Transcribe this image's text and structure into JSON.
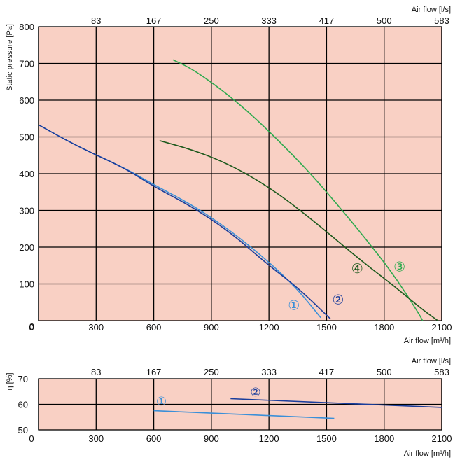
{
  "chart_data": [
    {
      "type": "line",
      "xlabel_bottom": "Air flow [m³/h]",
      "xlabel_top": "Air flow [l/s]",
      "ylabel": "Static pressure [Pa]",
      "xlim": [
        0,
        2100
      ],
      "ylim": [
        0,
        800
      ],
      "x_ticks": [
        "0",
        "300",
        "600",
        "900",
        "1200",
        "1500",
        "1800",
        "2100"
      ],
      "x_top_ticks": [
        "83",
        "167",
        "250",
        "333",
        "417",
        "500",
        "583"
      ],
      "y_ticks": [
        "0",
        "100",
        "200",
        "300",
        "400",
        "500",
        "600",
        "700",
        "800"
      ],
      "grid": true,
      "background": "#f9d0c4",
      "series": [
        {
          "name": "1",
          "color": "#3a8fd8",
          "label_at": [
            1330,
            40
          ],
          "points": [
            [
              0,
              533
            ],
            [
              200,
              475
            ],
            [
              450,
              415
            ],
            [
              600,
              370
            ],
            [
              800,
              315
            ],
            [
              1000,
              245
            ],
            [
              1200,
              160
            ],
            [
              1350,
              85
            ],
            [
              1470,
              8
            ]
          ]
        },
        {
          "name": "2",
          "color": "#1a3d9c",
          "label_at": [
            1560,
            55
          ],
          "points": [
            [
              0,
              533
            ],
            [
              200,
              475
            ],
            [
              450,
              415
            ],
            [
              600,
              365
            ],
            [
              800,
              310
            ],
            [
              1000,
              240
            ],
            [
              1200,
              150
            ],
            [
              1350,
              90
            ],
            [
              1520,
              5
            ]
          ]
        },
        {
          "name": "3",
          "color": "#2eaa4e",
          "label_at": [
            1880,
            145
          ],
          "points": [
            [
              700,
              710
            ],
            [
              800,
              685
            ],
            [
              950,
              630
            ],
            [
              1100,
              565
            ],
            [
              1250,
              490
            ],
            [
              1400,
              410
            ],
            [
              1550,
              320
            ],
            [
              1700,
              225
            ],
            [
              1850,
              125
            ],
            [
              1980,
              20
            ],
            [
              2000,
              0
            ]
          ]
        },
        {
          "name": "4",
          "color": "#1d5a1d",
          "label_at": [
            1660,
            140
          ],
          "points": [
            [
              630,
              490
            ],
            [
              800,
              465
            ],
            [
              950,
              435
            ],
            [
              1100,
              395
            ],
            [
              1250,
              345
            ],
            [
              1400,
              285
            ],
            [
              1550,
              220
            ],
            [
              1700,
              155
            ],
            [
              1850,
              95
            ],
            [
              2000,
              30
            ],
            [
              2080,
              0
            ]
          ]
        }
      ]
    },
    {
      "type": "line",
      "xlabel_bottom": "Air flow [m³/h]",
      "xlabel_top": "Air flow [l/s]",
      "ylabel": "η [%]",
      "xlim": [
        0,
        2100
      ],
      "ylim": [
        50,
        70
      ],
      "x_ticks": [
        "0",
        "300",
        "600",
        "900",
        "1200",
        "1500",
        "1800",
        "2100"
      ],
      "x_top_ticks": [
        "83",
        "167",
        "250",
        "333",
        "417",
        "500",
        "583"
      ],
      "y_ticks": [
        "50",
        "60",
        "70"
      ],
      "grid": true,
      "background": "#f9d0c4",
      "series": [
        {
          "name": "1",
          "color": "#3a8fd8",
          "label_at": [
            640,
            61
          ],
          "points": [
            [
              600,
              57.5
            ],
            [
              1540,
              54.5
            ]
          ]
        },
        {
          "name": "2",
          "color": "#1a3d9c",
          "label_at": [
            1130,
            64.5
          ],
          "points": [
            [
              1000,
              62.2
            ],
            [
              2100,
              58.8
            ]
          ]
        }
      ]
    }
  ]
}
